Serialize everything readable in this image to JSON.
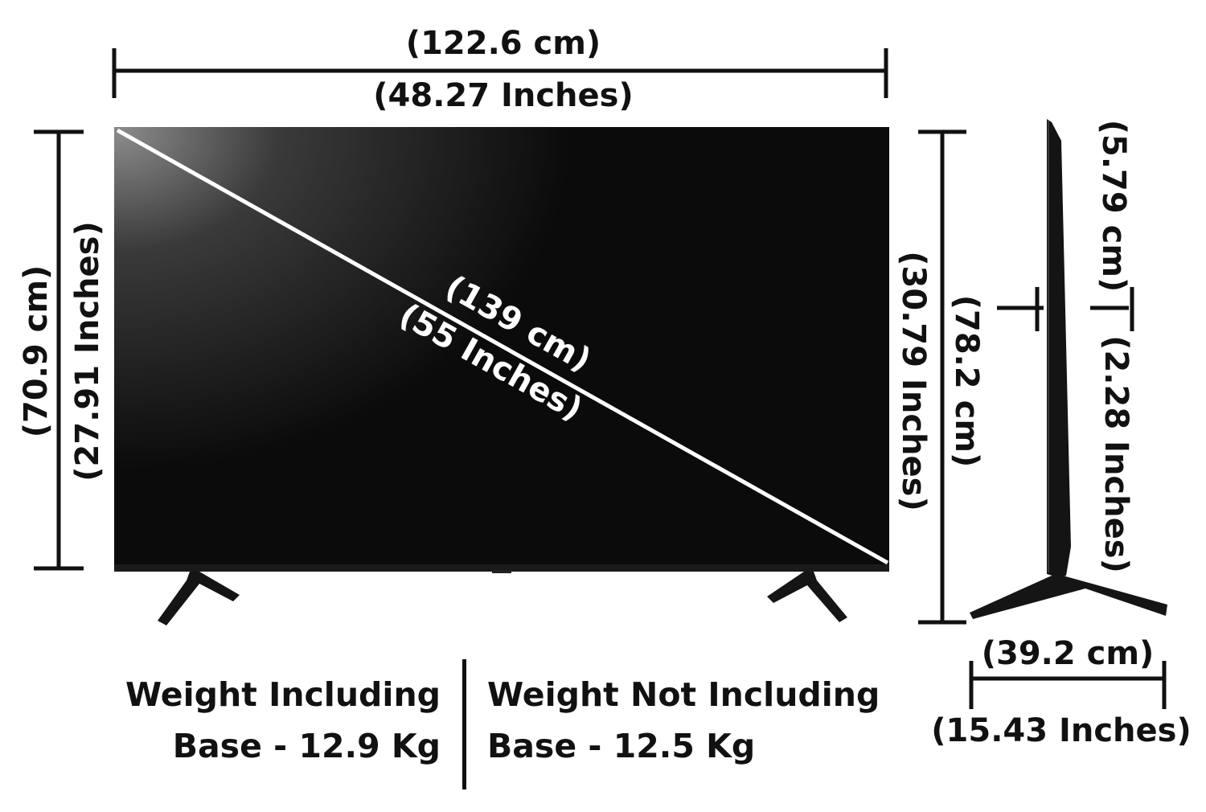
{
  "dimensions": {
    "width_cm": "(122.6 cm)",
    "width_in": "(48.27 Inches)",
    "height_no_stand_cm": "(70.9 cm)",
    "height_no_stand_in": "(27.91 Inches)",
    "diagonal_cm": "(139 cm)",
    "diagonal_in": "(55 Inches)",
    "height_with_stand_in": "(30.79 Inches)",
    "height_with_stand_cm": "(78.2 cm)",
    "depth_top_cm": "(5.79 cm)",
    "depth_body_in": "(2.28 Inches)",
    "stand_depth_cm": "(39.2 cm)",
    "stand_depth_in": "(15.43 Inches)"
  },
  "weights": {
    "including_line1": "Weight Including",
    "including_line2": "Base - 12.9 Kg",
    "not_including_line1": "Weight Not Including",
    "not_including_line2": "Base - 12.5 Kg"
  },
  "colors": {
    "ink": "#111111",
    "screen": "#0b0b0b",
    "background": "#ffffff"
  }
}
